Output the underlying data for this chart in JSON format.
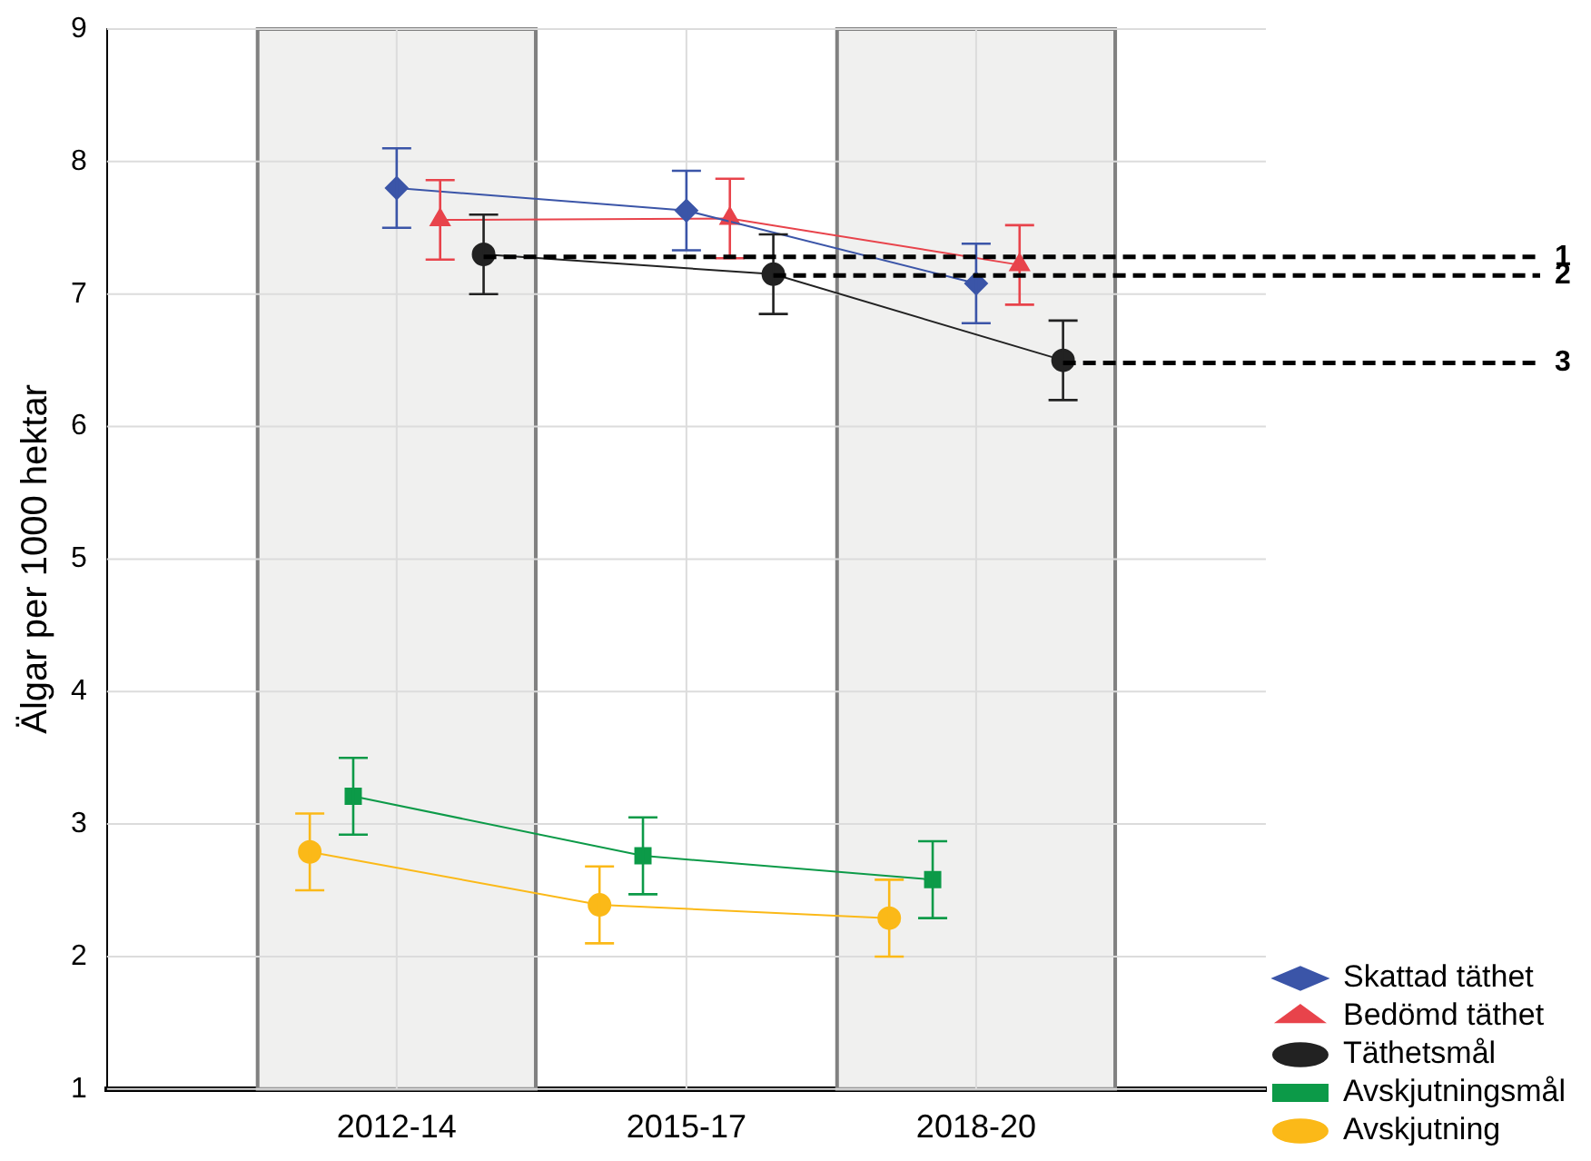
{
  "chart_data": {
    "type": "line",
    "ylabel": "Älgar per 1000 hektar",
    "categories": [
      "2012-14",
      "2015-17",
      "2018-20"
    ],
    "ylim": [
      1,
      9
    ],
    "yticks": [
      1,
      2,
      3,
      4,
      5,
      6,
      7,
      8,
      9
    ],
    "grid": true,
    "legend": "bottom right",
    "series": [
      {
        "name": "Skattad täthet",
        "color": "#3b55a8",
        "marker": "diamond",
        "values": [
          7.8,
          7.63,
          7.08
        ],
        "errors": [
          0.3,
          0.3,
          0.3
        ]
      },
      {
        "name": "Bedömd täthet",
        "color": "#e8434b",
        "marker": "triangle",
        "values": [
          7.56,
          7.57,
          7.22
        ],
        "errors": [
          0.3,
          0.3,
          0.3
        ]
      },
      {
        "name": "Täthetsmål",
        "color": "#222222",
        "marker": "circle",
        "values": [
          7.3,
          7.15,
          6.5
        ],
        "errors": [
          0.3,
          0.3,
          0.3
        ]
      },
      {
        "name": "Avskjutningsmål",
        "color": "#0c9a48",
        "marker": "square",
        "values": [
          3.21,
          2.76,
          2.58
        ],
        "errors": [
          0.29,
          0.29,
          0.29
        ]
      },
      {
        "name": "Avskjutning",
        "color": "#fbb918",
        "marker": "circle",
        "values": [
          2.79,
          2.39,
          2.29
        ],
        "errors": [
          0.29,
          0.29,
          0.29
        ]
      }
    ],
    "bands": [
      {
        "axis": "x",
        "from": "2012-14",
        "to": "2012-14",
        "color": "#f0f0ef"
      },
      {
        "axis": "x",
        "from": "2018-20",
        "to": "2018-20",
        "color": "#f0f0ef"
      }
    ],
    "ref_lines": [
      {
        "axis": "y",
        "value": 7.28,
        "line_style": "dashed"
      },
      {
        "axis": "y",
        "value": 7.14,
        "line_style": "dashed"
      },
      {
        "axis": "y",
        "value": 6.48,
        "line_style": "dashed"
      }
    ],
    "annotations": [
      "1",
      "2",
      "3"
    ]
  }
}
